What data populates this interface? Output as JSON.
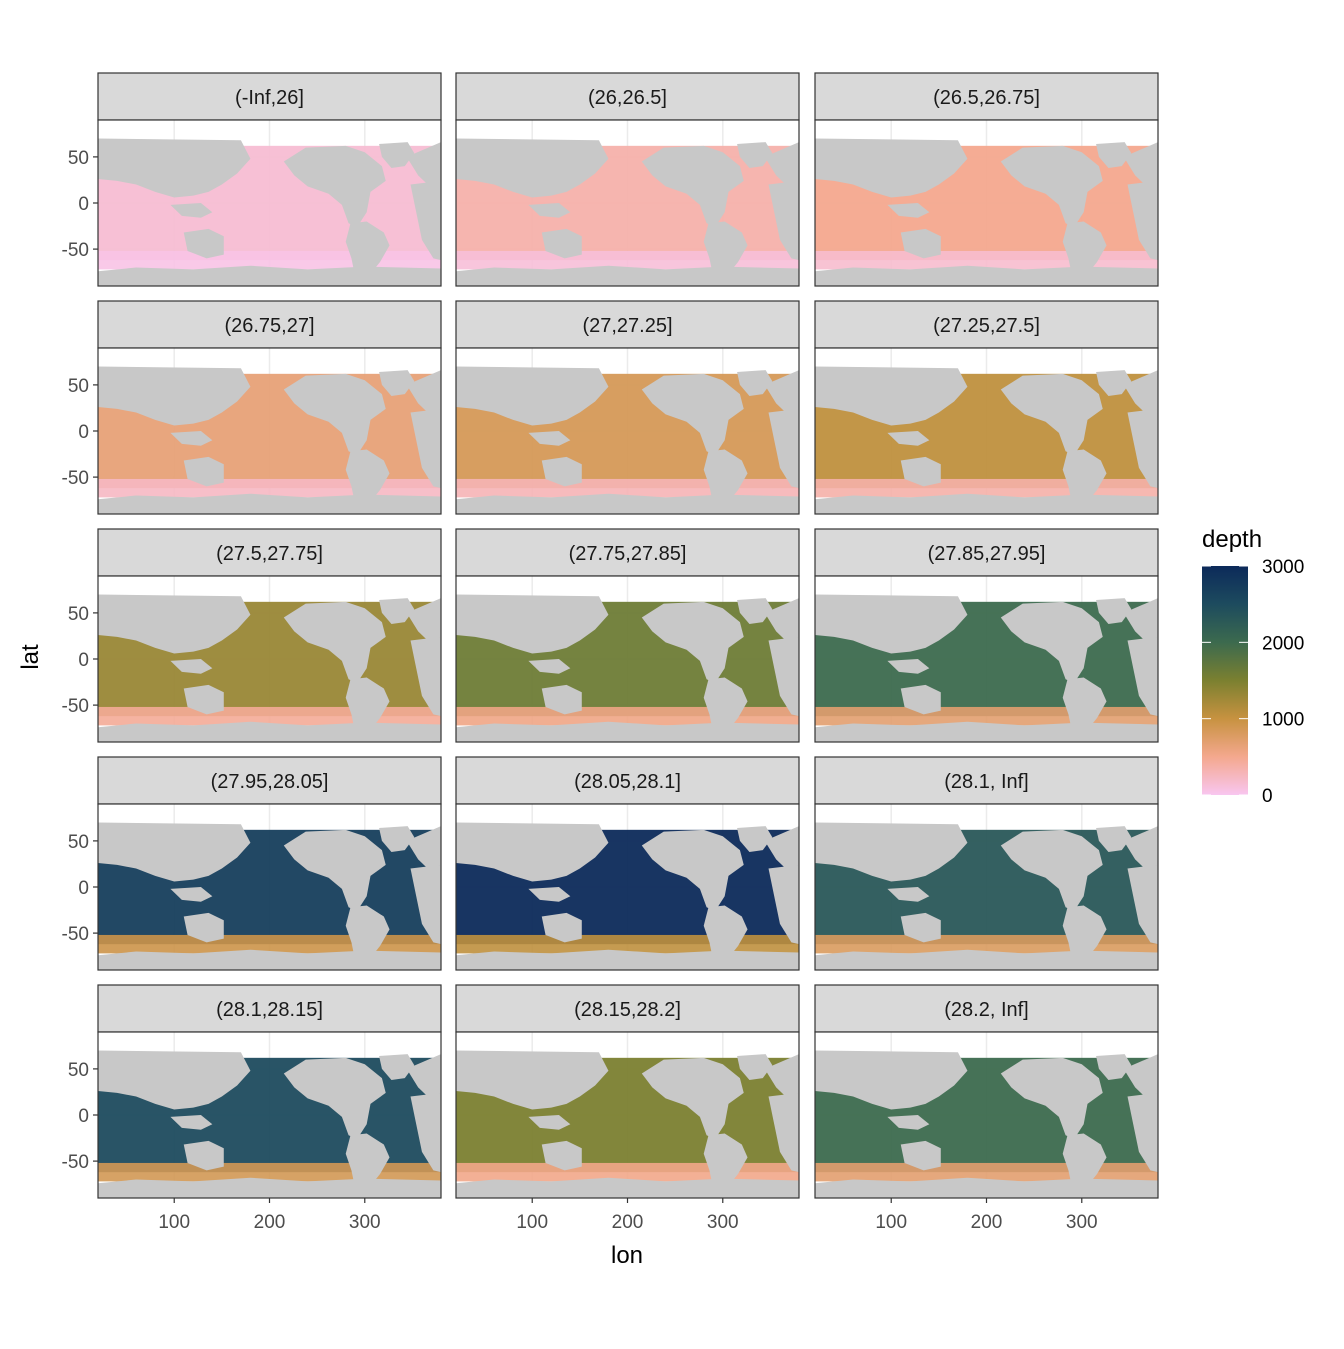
{
  "figure": {
    "x_title": "lon",
    "y_title": "lat",
    "legend_title": "depth",
    "legend_ticks": [
      "0",
      "1000",
      "2000",
      "3000"
    ],
    "legend_range": [
      0,
      3000
    ],
    "color_scale": [
      "#f8c6f0",
      "#f4a88e",
      "#c79240",
      "#7b8030",
      "#3c6a4e",
      "#1d4b5e",
      "#0c2a5a"
    ],
    "strip_fill": "#d9d9d9",
    "land_color": "#c8c8c8",
    "grid_color": "#ebebeb"
  },
  "chart_data": {
    "type": "heatmap",
    "facet_layout": "5 rows x 3 columns",
    "x_axis": {
      "label": "lon",
      "lim": [
        20,
        380
      ],
      "ticks": [
        100,
        200,
        300
      ]
    },
    "y_axis": {
      "label": "lat",
      "lim": [
        -90,
        90
      ],
      "ticks": [
        50,
        0,
        -50
      ]
    },
    "panels": [
      {
        "label": "(-Inf,26]",
        "typical_depth": 150
      },
      {
        "label": "(26,26.5]",
        "typical_depth": 350
      },
      {
        "label": "(26.5,26.75]",
        "typical_depth": 500
      },
      {
        "label": "(26.75,27]",
        "typical_depth": 650
      },
      {
        "label": "(27,27.25]",
        "typical_depth": 850
      },
      {
        "label": "(27.25,27.5]",
        "typical_depth": 1050
      },
      {
        "label": "(27.5,27.75]",
        "typical_depth": 1300
      },
      {
        "label": "(27.75,27.85]",
        "typical_depth": 1600
      },
      {
        "label": "(27.85,27.95]",
        "typical_depth": 2000
      },
      {
        "label": "(27.95,28.05]",
        "typical_depth": 2700
      },
      {
        "label": "(28.05,28.1]",
        "typical_depth": 3000
      },
      {
        "label": "(28.1, Inf]",
        "typical_depth": 2300
      },
      {
        "label": "(28.1,28.15]",
        "typical_depth": 2500
      },
      {
        "label": "(28.15,28.2]",
        "typical_depth": 1500
      },
      {
        "label": "(28.2, Inf]",
        "typical_depth": 2000
      }
    ]
  }
}
